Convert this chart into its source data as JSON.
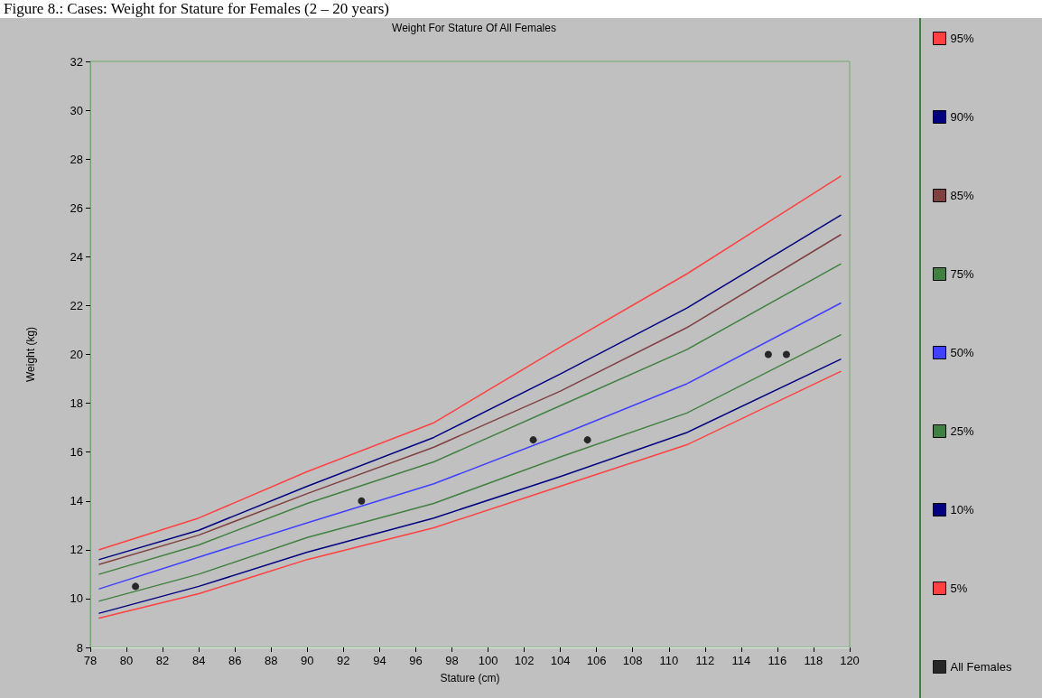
{
  "chart_data": {
    "type": "line",
    "title": "Weight For Stature Of All Females",
    "xlabel": "Stature (cm)",
    "ylabel": "Weight (kg)",
    "annotations": [
      "Figure 8.: Cases: Weight for Stature for Females (2 – 20 years)"
    ],
    "x": [
      78.5,
      84,
      90,
      97,
      104,
      111,
      119.5
    ],
    "xlim": [
      78,
      120
    ],
    "xticks": [
      78,
      80,
      82,
      84,
      86,
      88,
      90,
      92,
      94,
      96,
      98,
      100,
      102,
      104,
      106,
      108,
      110,
      112,
      114,
      116,
      118,
      120
    ],
    "ylim": [
      8,
      32
    ],
    "yticks": [
      8,
      10,
      12,
      14,
      16,
      18,
      20,
      22,
      24,
      26,
      28,
      30,
      32
    ],
    "legend": "right",
    "marker": "none",
    "series": [
      {
        "name": "95%",
        "color": "#ff4040",
        "values": [
          12.0,
          13.3,
          15.2,
          17.2,
          20.3,
          23.3,
          27.3
        ]
      },
      {
        "name": "90%",
        "color": "#000080",
        "values": [
          11.6,
          12.8,
          14.6,
          16.6,
          19.2,
          21.9,
          25.7
        ]
      },
      {
        "name": "85%",
        "color": "#804040",
        "values": [
          11.4,
          12.6,
          14.3,
          16.2,
          18.5,
          21.1,
          24.9
        ]
      },
      {
        "name": "75%",
        "color": "#408040",
        "values": [
          11.0,
          12.2,
          13.9,
          15.6,
          17.9,
          20.2,
          23.7
        ]
      },
      {
        "name": "50%",
        "color": "#4040ff",
        "values": [
          10.4,
          11.7,
          13.1,
          14.7,
          16.7,
          18.8,
          22.1
        ]
      },
      {
        "name": "25%",
        "color": "#408040",
        "values": [
          9.9,
          11.0,
          12.5,
          13.9,
          15.8,
          17.6,
          20.8
        ]
      },
      {
        "name": "10%",
        "color": "#000080",
        "values": [
          9.4,
          10.5,
          11.9,
          13.3,
          15.0,
          16.8,
          19.8
        ]
      },
      {
        "name": "5%",
        "color": "#ff4040",
        "values": [
          9.2,
          10.2,
          11.6,
          12.9,
          14.6,
          16.3,
          19.3
        ]
      },
      {
        "name": "All Females",
        "type": "scatter",
        "marker": "circle",
        "color": "#000000",
        "x": [
          80.5,
          93,
          102.5,
          105.5,
          115.5,
          116.5
        ],
        "values": [
          10.5,
          14,
          16.5,
          16.5,
          20,
          20
        ]
      }
    ]
  }
}
